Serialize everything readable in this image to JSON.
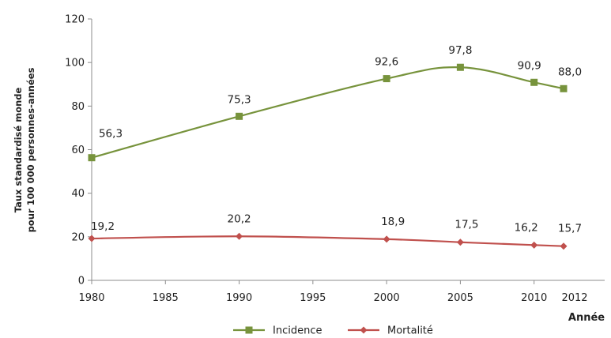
{
  "chart_data": {
    "type": "line",
    "title": "",
    "ylabel_lines": [
      "Taux standardisé monde",
      "pour 100 000 personnes-années"
    ],
    "xlabel": "Année",
    "ylim": [
      0,
      120
    ],
    "yticks": [
      0,
      20,
      40,
      60,
      80,
      100,
      120
    ],
    "xlim": [
      1980,
      2012
    ],
    "xticks": [
      1980,
      1985,
      1990,
      1995,
      2000,
      2005,
      2010,
      2012
    ],
    "grid": false,
    "legend_position": "bottom",
    "series": [
      {
        "name": "Incidence",
        "color": "#77933C",
        "marker": "square",
        "x": [
          1980,
          1990,
          2000,
          2005,
          2010,
          2012
        ],
        "y": [
          56.3,
          75.3,
          92.6,
          97.8,
          90.9,
          88.0
        ],
        "labels": [
          "56,3",
          "75,3",
          "92,6",
          "97,8",
          "90,9",
          "88,0"
        ]
      },
      {
        "name": "Mortalité",
        "color": "#C0504D",
        "marker": "diamond",
        "x": [
          1980,
          1990,
          2000,
          2005,
          2010,
          2012
        ],
        "y": [
          19.2,
          20.2,
          18.9,
          17.5,
          16.2,
          15.7
        ],
        "labels": [
          "19,2",
          "20,2",
          "18,9",
          "17,5",
          "16,2",
          "15,7"
        ]
      }
    ]
  }
}
